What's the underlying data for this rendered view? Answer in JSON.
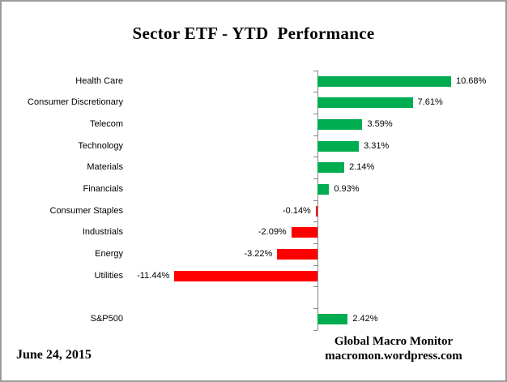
{
  "title": "Sector ETF - YTD  Performance",
  "footer": {
    "date": "June 24, 2015",
    "source_line1": "Global Macro Monitor",
    "source_line2": "macromon.wordpress.com"
  },
  "chart_data": {
    "type": "bar",
    "orientation": "horizontal",
    "title": "Sector ETF - YTD  Performance",
    "categories": [
      "Health Care",
      "Consumer Discretionary",
      "Telecom",
      "Technology",
      "Materials",
      "Financials",
      "Consumer Staples",
      "Industrials",
      "Energy",
      "Utilities",
      "",
      "S&P500"
    ],
    "values": [
      10.68,
      7.61,
      3.59,
      3.31,
      2.14,
      0.93,
      -0.14,
      -2.09,
      -3.22,
      -11.44,
      null,
      2.42
    ],
    "value_labels": [
      "10.68%",
      "7.61%",
      "3.59%",
      "3.31%",
      "2.14%",
      "0.93%",
      "-0.14%",
      "-2.09%",
      "-3.22%",
      "-11.44%",
      "",
      "2.42%"
    ],
    "unit": "%",
    "xlim": [
      -12,
      12
    ],
    "grid": false,
    "legend": false,
    "value_label_position": "end-of-bar",
    "positive_color": "#00AC50",
    "negative_color": "#FF0000",
    "axis_color": "#858585"
  }
}
